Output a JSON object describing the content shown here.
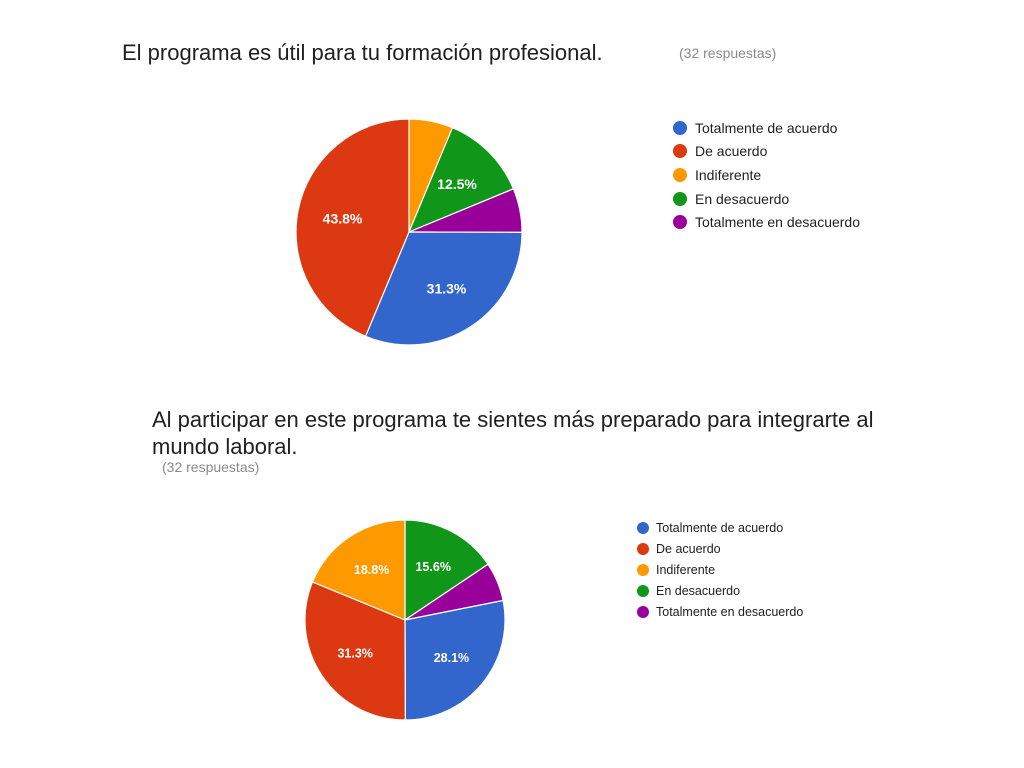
{
  "charts": [
    {
      "id": "q1",
      "title": "El programa es útil para tu formación profesional.",
      "responses_label": "(32 respuestas)"
    },
    {
      "id": "q2",
      "title": "Al participar en este programa te sientes más preparado para integrarte al mundo laboral.",
      "responses_label": "(32 respuestas)"
    }
  ],
  "chart_data": [
    {
      "type": "pie",
      "title": "El programa es útil para tu formación profesional.",
      "total_responses": 32,
      "legend_position": "right",
      "start": "top",
      "direction": "clockwise",
      "slice_order": [
        "Indiferente",
        "En desacuerdo",
        "Totalmente en desacuerdo",
        "Totalmente de acuerdo",
        "De acuerdo"
      ],
      "slices": [
        {
          "label": "Totalmente de acuerdo",
          "value": 31.3,
          "display": "31.3%",
          "color": "#3366cc"
        },
        {
          "label": "De acuerdo",
          "value": 43.8,
          "display": "43.8%",
          "color": "#dc3912"
        },
        {
          "label": "Indiferente",
          "value": 6.3,
          "display": "",
          "color": "#ff9900"
        },
        {
          "label": "En desacuerdo",
          "value": 12.5,
          "display": "12.5%",
          "color": "#109618"
        },
        {
          "label": "Totalmente en desacuerdo",
          "value": 6.3,
          "display": "",
          "color": "#990099"
        }
      ]
    },
    {
      "type": "pie",
      "title": "Al participar en este programa te sientes más preparado para integrarte al mundo laboral.",
      "total_responses": 32,
      "legend_position": "right",
      "start": "top",
      "direction": "clockwise",
      "slice_order": [
        "En desacuerdo",
        "Totalmente en desacuerdo",
        "Totalmente de acuerdo",
        "De acuerdo",
        "Indiferente"
      ],
      "slices": [
        {
          "label": "Totalmente de acuerdo",
          "value": 28.1,
          "display": "28.1%",
          "color": "#3366cc"
        },
        {
          "label": "De acuerdo",
          "value": 31.3,
          "display": "31.3%",
          "color": "#dc3912"
        },
        {
          "label": "Indiferente",
          "value": 18.8,
          "display": "18.8%",
          "color": "#ff9900"
        },
        {
          "label": "En desacuerdo",
          "value": 15.6,
          "display": "15.6%",
          "color": "#109618"
        },
        {
          "label": "Totalmente en desacuerdo",
          "value": 6.3,
          "display": "",
          "color": "#990099"
        }
      ]
    }
  ]
}
